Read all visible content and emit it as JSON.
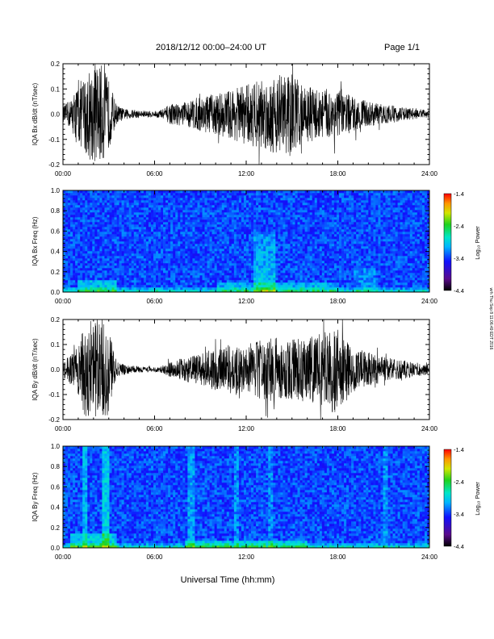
{
  "header": {
    "date_range": "2018/12/12  00:00–24:00 UT",
    "page": "Page 1/1"
  },
  "footer": {
    "xlabel": "Universal Time (hh:mm)",
    "side_note": "wrh Thu Sep 8 11:06:49 EDT 2016"
  },
  "chart_data": [
    {
      "type": "line",
      "ylabel": "IQA Bx dB/dt (nT/sec)",
      "xlim": [
        0,
        24
      ],
      "ylim": [
        -0.2,
        0.2
      ],
      "x_tick_labels": [
        "00:00",
        "06:00",
        "12:00",
        "18:00",
        "24:00"
      ],
      "y_tick_labels": [
        "-0.2",
        "-0.1",
        "0.0",
        "0.1",
        "0.2"
      ],
      "envelope": {
        "x_hours": [
          0,
          0.5,
          1,
          1.5,
          2,
          2.5,
          3,
          3.5,
          4,
          5,
          6,
          6.5,
          7,
          8,
          9,
          10,
          11,
          12,
          13,
          14,
          14.5,
          15,
          15.5,
          16,
          17,
          18,
          19,
          20,
          21,
          22,
          23,
          24
        ],
        "amplitude": [
          0.03,
          0.06,
          0.12,
          0.16,
          0.2,
          0.2,
          0.14,
          0.04,
          0.02,
          0.015,
          0.012,
          0.02,
          0.04,
          0.05,
          0.07,
          0.08,
          0.1,
          0.12,
          0.14,
          0.16,
          0.17,
          0.16,
          0.13,
          0.11,
          0.1,
          0.1,
          0.07,
          0.05,
          0.04,
          0.03,
          0.02,
          0.015
        ]
      }
    },
    {
      "type": "heatmap",
      "ylabel": "IQA Bx Freq (Hz)",
      "xlim": [
        0,
        24
      ],
      "ylim": [
        0,
        1.0
      ],
      "x_tick_labels": [
        "00:00",
        "06:00",
        "12:00",
        "18:00",
        "24:00"
      ],
      "y_tick_labels": [
        "0.0",
        "0.2",
        "0.4",
        "0.6",
        "0.8",
        "1.0"
      ],
      "colorbar": {
        "label": "Log₁₀ Power",
        "ticks": [
          "-1.4",
          "-2.4",
          "-3.4",
          "-4.4"
        ],
        "range": [
          -4.4,
          -1.4
        ]
      }
    },
    {
      "type": "line",
      "ylabel": "IQA By dB/dt (nT/sec)",
      "xlim": [
        0,
        24
      ],
      "ylim": [
        -0.2,
        0.2
      ],
      "x_tick_labels": [
        "00:00",
        "06:00",
        "12:00",
        "18:00",
        "24:00"
      ],
      "y_tick_labels": [
        "-0.2",
        "-0.1",
        "0.0",
        "0.1",
        "0.2"
      ],
      "envelope": {
        "x_hours": [
          0,
          0.5,
          1,
          1.5,
          2,
          2.5,
          3,
          3.5,
          4,
          5,
          6,
          6.5,
          7,
          8,
          9,
          10,
          11,
          12,
          13,
          14,
          15,
          16,
          17,
          17.5,
          18,
          18.5,
          19,
          20,
          21,
          22,
          23,
          24
        ],
        "amplitude": [
          0.04,
          0.06,
          0.1,
          0.2,
          0.2,
          0.2,
          0.18,
          0.03,
          0.02,
          0.012,
          0.01,
          0.015,
          0.03,
          0.05,
          0.06,
          0.09,
          0.1,
          0.1,
          0.12,
          0.13,
          0.12,
          0.13,
          0.15,
          0.16,
          0.2,
          0.12,
          0.09,
          0.07,
          0.05,
          0.04,
          0.03,
          0.02
        ]
      }
    },
    {
      "type": "heatmap",
      "ylabel": "IQA By Freq (Hz)",
      "xlim": [
        0,
        24
      ],
      "ylim": [
        0,
        1.0
      ],
      "x_tick_labels": [
        "00:00",
        "06:00",
        "12:00",
        "18:00",
        "24:00"
      ],
      "y_tick_labels": [
        "0.0",
        "0.2",
        "0.4",
        "0.6",
        "0.8",
        "1.0"
      ],
      "colorbar": {
        "label": "Log₁₀ Power",
        "ticks": [
          "-1.4",
          "-2.4",
          "-3.4",
          "-4.4"
        ],
        "range": [
          -4.4,
          -1.4
        ]
      }
    }
  ]
}
